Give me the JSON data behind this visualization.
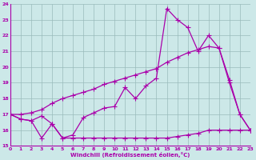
{
  "xlabel": "Windchill (Refroidissement éolien,°C)",
  "bg_color": "#cce8e8",
  "line_color": "#aa00aa",
  "grid_color": "#99bbbb",
  "ylim": [
    15,
    24
  ],
  "xlim": [
    0,
    23
  ],
  "yticks": [
    15,
    16,
    17,
    18,
    19,
    20,
    21,
    22,
    23,
    24
  ],
  "xticks": [
    0,
    1,
    2,
    3,
    4,
    5,
    6,
    7,
    8,
    9,
    10,
    11,
    12,
    13,
    14,
    15,
    16,
    17,
    18,
    19,
    20,
    21,
    22,
    23
  ],
  "line1_x": [
    0,
    1,
    2,
    3,
    4,
    5,
    6,
    7,
    8,
    9,
    10,
    11,
    12,
    13,
    14,
    15,
    16,
    17,
    18,
    19,
    20,
    21,
    22,
    23
  ],
  "line1_y": [
    17.0,
    16.7,
    16.6,
    16.9,
    16.4,
    15.5,
    15.7,
    16.8,
    17.1,
    17.4,
    17.5,
    18.7,
    18.0,
    18.8,
    19.3,
    23.7,
    23.0,
    22.5,
    21.0,
    22.0,
    21.2,
    19.0,
    17.0,
    16.0
  ],
  "line2_x": [
    0,
    1,
    2,
    3,
    4,
    5,
    6,
    7,
    8,
    9,
    10,
    11,
    12,
    13,
    14,
    15,
    16,
    17,
    18,
    19,
    20,
    21,
    22,
    23
  ],
  "line2_y": [
    17.0,
    16.7,
    16.6,
    15.5,
    16.4,
    15.5,
    15.5,
    15.5,
    15.5,
    15.5,
    15.5,
    15.5,
    15.5,
    15.5,
    15.5,
    15.5,
    15.6,
    15.7,
    15.8,
    16.0,
    16.0,
    16.0,
    16.0,
    16.0
  ],
  "line3_x": [
    0,
    1,
    2,
    3,
    4,
    5,
    6,
    7,
    8,
    9,
    10,
    11,
    12,
    13,
    14,
    15,
    16,
    17,
    18,
    19,
    20,
    21,
    22,
    23
  ],
  "line3_y": [
    17.0,
    17.0,
    17.1,
    17.3,
    17.7,
    18.0,
    18.2,
    18.4,
    18.6,
    18.9,
    19.1,
    19.3,
    19.5,
    19.7,
    19.9,
    20.3,
    20.6,
    20.9,
    21.1,
    21.3,
    21.2,
    19.2,
    17.0,
    16.0
  ]
}
